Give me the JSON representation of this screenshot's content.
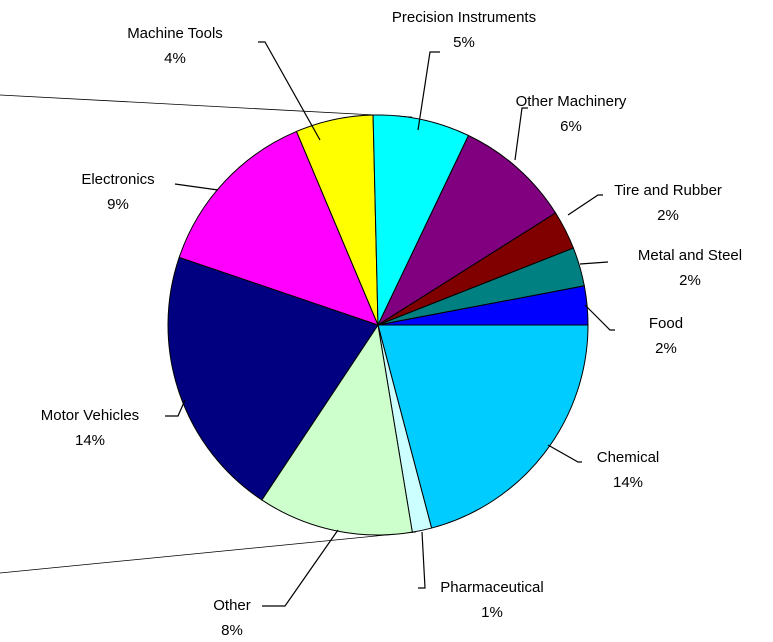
{
  "chart_data": {
    "type": "pie",
    "categories": [
      "Chemical",
      "Pharmaceutical",
      "Other",
      "Motor Vehicles",
      "Electronics",
      "Machine Tools",
      "Precision Instruments",
      "Other Machinery",
      "Tire and Rubber",
      "Metal and Steel",
      "Food"
    ],
    "values": [
      14,
      1,
      8,
      14,
      9,
      4,
      5,
      6,
      2,
      2,
      2
    ],
    "value_labels": [
      "14%",
      "1%",
      "8%",
      "14%",
      "9%",
      "4%",
      "5%",
      "6%",
      "2%",
      "2%",
      "2%"
    ],
    "colors": [
      "#00ccff",
      "#ccffff",
      "#ccffcc",
      "#000080",
      "#ff00ff",
      "#ffff00",
      "#00ffff",
      "#800080",
      "#800000",
      "#008080",
      "#0000ff"
    ]
  }
}
